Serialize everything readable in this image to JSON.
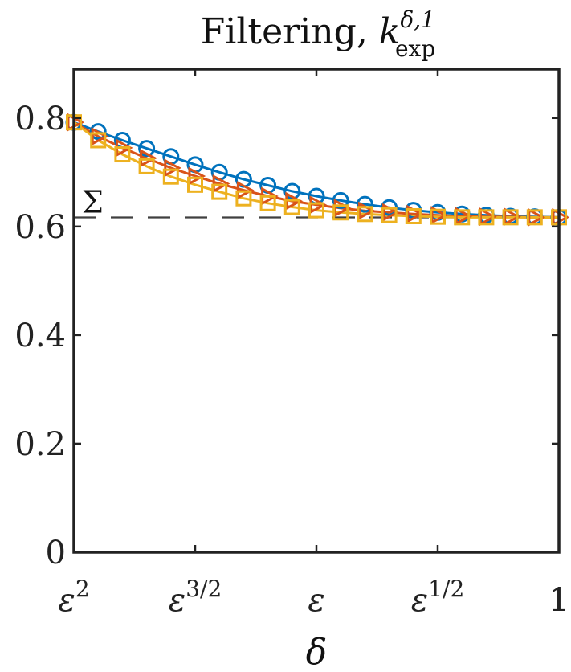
{
  "chart_data": {
    "type": "line",
    "title": {
      "main": "Filtering, ",
      "symbol": "k",
      "superscript": "δ,1",
      "subscript": "exp"
    },
    "xlabel": "δ",
    "ylabel": "",
    "xticks": [
      {
        "pos": 0,
        "base": "ε",
        "exp": "2"
      },
      {
        "pos": 0.25,
        "base": "ε",
        "exp": "3/2"
      },
      {
        "pos": 0.5,
        "base": "ε",
        "exp": ""
      },
      {
        "pos": 0.75,
        "base": "ε",
        "exp": "1/2"
      },
      {
        "pos": 1,
        "base": "1",
        "exp": ""
      }
    ],
    "yticks": [
      "0",
      "0.2",
      "0.4",
      "0.6",
      "0.8"
    ],
    "ytick_values": [
      0,
      0.2,
      0.4,
      0.6,
      0.8
    ],
    "xlim": [
      0,
      1
    ],
    "ylim": [
      0,
      0.89
    ],
    "grid": false,
    "reference_line": {
      "label": "Σ",
      "value": 0.6168
    },
    "series": [
      {
        "marker": "circle",
        "color": "#0072BD",
        "x": [
          0,
          0.05,
          0.1,
          0.15,
          0.2,
          0.25,
          0.3,
          0.35,
          0.4,
          0.45,
          0.5,
          0.55,
          0.6,
          0.65,
          0.7,
          0.75,
          0.8,
          0.85,
          0.9,
          0.95,
          1.0
        ],
        "y": [
          0.792,
          0.775,
          0.759,
          0.744,
          0.729,
          0.714,
          0.7,
          0.687,
          0.676,
          0.665,
          0.656,
          0.648,
          0.641,
          0.635,
          0.63,
          0.626,
          0.623,
          0.621,
          0.619,
          0.618,
          0.617
        ]
      },
      {
        "marker": "triangle-right",
        "color": "#D95319",
        "x": [
          0,
          0.05,
          0.1,
          0.15,
          0.2,
          0.25,
          0.3,
          0.35,
          0.4,
          0.45,
          0.5,
          0.55,
          0.6,
          0.65,
          0.7,
          0.75,
          0.8,
          0.85,
          0.9,
          0.95,
          1.0
        ],
        "y": [
          0.792,
          0.766,
          0.745,
          0.726,
          0.708,
          0.693,
          0.679,
          0.667,
          0.656,
          0.647,
          0.64,
          0.634,
          0.629,
          0.626,
          0.623,
          0.621,
          0.619,
          0.618,
          0.618,
          0.617,
          0.617
        ]
      },
      {
        "marker": "square",
        "color": "#EDB120",
        "x": [
          0,
          0.05,
          0.1,
          0.15,
          0.2,
          0.25,
          0.3,
          0.35,
          0.4,
          0.45,
          0.5,
          0.55,
          0.6,
          0.65,
          0.7,
          0.75,
          0.8,
          0.85,
          0.9,
          0.95,
          1.0
        ],
        "y": [
          0.792,
          0.759,
          0.733,
          0.711,
          0.692,
          0.677,
          0.664,
          0.652,
          0.643,
          0.636,
          0.63,
          0.626,
          0.623,
          0.621,
          0.619,
          0.618,
          0.617,
          0.617,
          0.617,
          0.617,
          0.617
        ]
      }
    ],
    "reference_color": "#404040",
    "axis_color": "#222222"
  }
}
